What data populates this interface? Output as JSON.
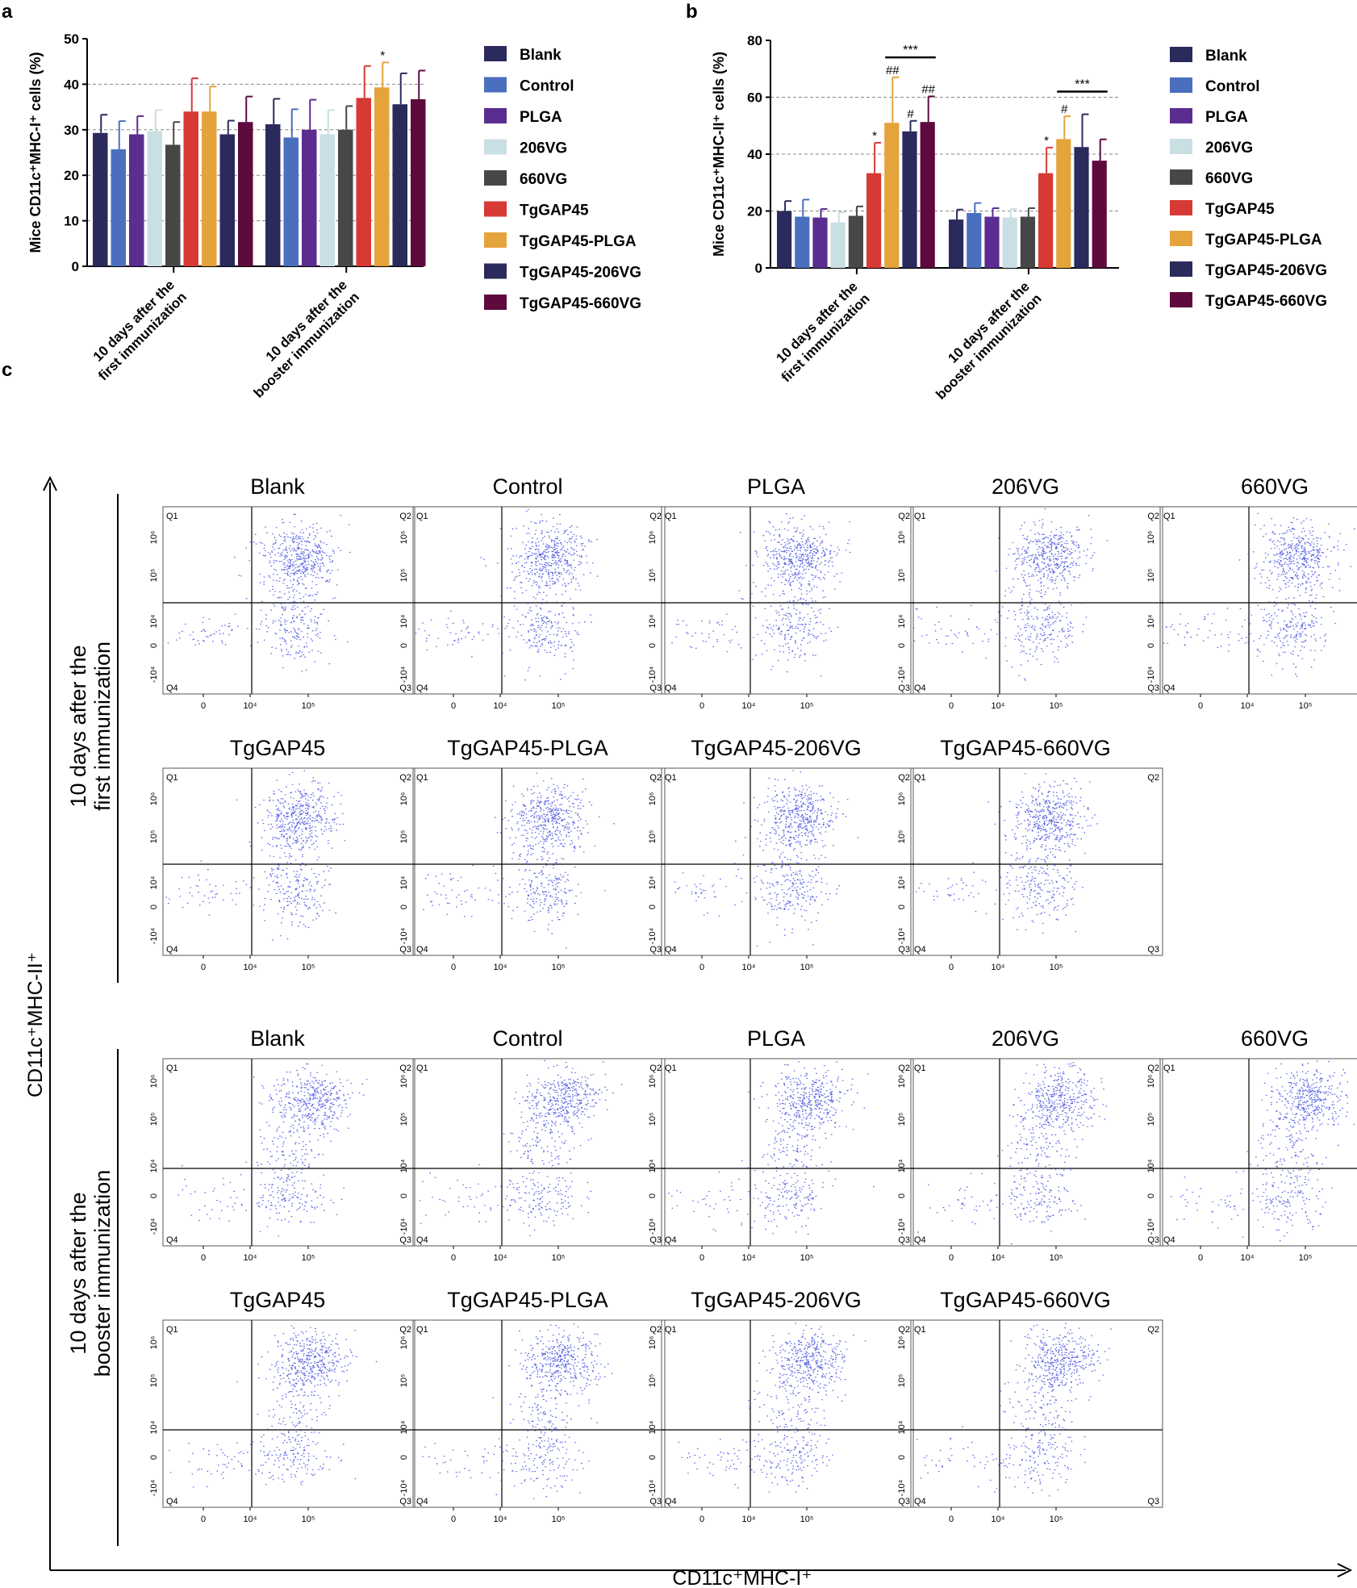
{
  "panel_labels": {
    "a": "a",
    "b": "b",
    "c": "c"
  },
  "chart_data": [
    {
      "type": "bar",
      "panel": "a",
      "ylabel": "Mice CD11c⁺MHC-I⁺ cells (%)",
      "ylim": [
        0,
        50
      ],
      "yticks": [
        "0",
        "10",
        "20",
        "30",
        "40",
        "50"
      ],
      "grid": "dashed at 10, 20, 30, 40",
      "legend_position": "right",
      "categories": [
        {
          "line1": "10 days after the",
          "line2": "first immunization"
        },
        {
          "line1": "10 days after the",
          "line2": "booster immunization"
        }
      ],
      "series": [
        {
          "name": "Blank",
          "color": "#2b2a5c",
          "values": [
            29.3,
            31.2
          ],
          "errors": [
            4.0,
            5.6
          ],
          "marks": [
            "",
            ""
          ]
        },
        {
          "name": "Control",
          "color": "#4a6fbf",
          "values": [
            25.7,
            28.3
          ],
          "errors": [
            6.2,
            6.2
          ],
          "marks": [
            "",
            ""
          ]
        },
        {
          "name": "PLGA",
          "color": "#5b2d91",
          "values": [
            29.0,
            30.0
          ],
          "errors": [
            4.0,
            6.6
          ],
          "marks": [
            "",
            ""
          ]
        },
        {
          "name": "206VG",
          "color": "#c9dfe3",
          "values": [
            29.7,
            29.0
          ],
          "errors": [
            4.6,
            5.3
          ],
          "marks": [
            "",
            ""
          ]
        },
        {
          "name": "660VG",
          "color": "#474747",
          "values": [
            26.7,
            30.0
          ],
          "errors": [
            5.0,
            5.2
          ],
          "marks": [
            "",
            ""
          ]
        },
        {
          "name": "TgGAP45",
          "color": "#d73a35",
          "values": [
            34.0,
            37.0
          ],
          "errors": [
            7.3,
            7.0
          ],
          "marks": [
            "",
            ""
          ]
        },
        {
          "name": "TgGAP45-PLGA",
          "color": "#e5a33c",
          "values": [
            34.0,
            39.3
          ],
          "errors": [
            5.5,
            5.5
          ],
          "marks": [
            "",
            "*"
          ]
        },
        {
          "name": "TgGAP45-206VG",
          "color": "#2b2a5c",
          "values": [
            29.0,
            35.6
          ],
          "errors": [
            3.0,
            6.8
          ],
          "marks": [
            "",
            ""
          ]
        },
        {
          "name": "TgGAP45-660VG",
          "color": "#5e0a3d",
          "values": [
            31.7,
            36.7
          ],
          "errors": [
            5.6,
            6.3
          ],
          "marks": [
            "",
            ""
          ]
        }
      ],
      "brackets": []
    },
    {
      "type": "bar",
      "panel": "b",
      "ylabel": "Mice CD11c⁺MHC-II⁺ cells (%)",
      "ylim": [
        0,
        80
      ],
      "yticks": [
        "0",
        "20",
        "40",
        "60",
        "80"
      ],
      "grid": "dashed at 20, 40, 60",
      "legend_position": "right",
      "categories": [
        {
          "line1": "10 days after the",
          "line2": "first immunization"
        },
        {
          "line1": "10 days after the",
          "line2": "booster immunization"
        }
      ],
      "series": [
        {
          "name": "Blank",
          "color": "#2b2a5c",
          "values": [
            20.0,
            17.0
          ],
          "errors": [
            3.5,
            3.5
          ],
          "marks": [
            "",
            ""
          ]
        },
        {
          "name": "Control",
          "color": "#4a6fbf",
          "values": [
            18.0,
            19.3
          ],
          "errors": [
            6.0,
            3.5
          ],
          "marks": [
            "",
            ""
          ]
        },
        {
          "name": "PLGA",
          "color": "#5b2d91",
          "values": [
            17.7,
            18.0
          ],
          "errors": [
            3.0,
            3.0
          ],
          "marks": [
            "",
            ""
          ]
        },
        {
          "name": "206VG",
          "color": "#c9dfe3",
          "values": [
            16.0,
            17.7
          ],
          "errors": [
            3.5,
            3.0
          ],
          "marks": [
            "",
            ""
          ]
        },
        {
          "name": "660VG",
          "color": "#474747",
          "values": [
            18.3,
            18.0
          ],
          "errors": [
            3.3,
            3.0
          ],
          "marks": [
            "",
            ""
          ]
        },
        {
          "name": "TgGAP45",
          "color": "#d73a35",
          "values": [
            33.3,
            33.3
          ],
          "errors": [
            10.7,
            9.0
          ],
          "marks": [
            "*",
            "*"
          ]
        },
        {
          "name": "TgGAP45-PLGA",
          "color": "#e5a33c",
          "values": [
            51.0,
            45.3
          ],
          "errors": [
            16.0,
            8.0
          ],
          "marks": [
            "##",
            "#"
          ]
        },
        {
          "name": "TgGAP45-206VG",
          "color": "#2b2a5c",
          "values": [
            48.0,
            42.5
          ],
          "errors": [
            3.7,
            11.5
          ],
          "marks": [
            "#",
            ""
          ]
        },
        {
          "name": "TgGAP45-660VG",
          "color": "#5e0a3d",
          "values": [
            51.3,
            37.7
          ],
          "errors": [
            9.0,
            7.5
          ],
          "marks": [
            "##",
            ""
          ]
        }
      ],
      "brackets": [
        {
          "group": 0,
          "from": "TgGAP45-PLGA",
          "to": "TgGAP45-660VG",
          "value": 74,
          "label": "***"
        },
        {
          "group": 1,
          "from": "TgGAP45-PLGA",
          "to": "TgGAP45-660VG",
          "value": 62,
          "label": "***"
        }
      ]
    },
    {
      "type": "scatter",
      "panel": "c",
      "subtype": "flow cytometry quadrant plots",
      "xlabel": "CD11c⁺MHC-I⁺",
      "ylabel": "CD11c⁺MHC-II⁺",
      "row_titles": [
        "10 days after the first immunization",
        "10 days after the booster immunization"
      ],
      "quadrant_labels": [
        "Q1",
        "Q2",
        "Q3",
        "Q4"
      ],
      "x_ticks": [
        "0",
        "10⁴",
        "10⁵"
      ],
      "y_ticks": [
        "10⁶",
        "10⁵",
        "10⁴",
        "0",
        "-10⁴"
      ],
      "plots": [
        {
          "row": 0,
          "title": "Blank"
        },
        {
          "row": 0,
          "title": "Control"
        },
        {
          "row": 0,
          "title": "PLGA"
        },
        {
          "row": 0,
          "title": "206VG"
        },
        {
          "row": 0,
          "title": "660VG"
        },
        {
          "row": 0,
          "title": "TgGAP45"
        },
        {
          "row": 0,
          "title": "TgGAP45-PLGA"
        },
        {
          "row": 0,
          "title": "TgGAP45-206VG"
        },
        {
          "row": 0,
          "title": "TgGAP45-660VG"
        },
        {
          "row": 1,
          "title": "Blank"
        },
        {
          "row": 1,
          "title": "Control"
        },
        {
          "row": 1,
          "title": "PLGA"
        },
        {
          "row": 1,
          "title": "206VG"
        },
        {
          "row": 1,
          "title": "660VG"
        },
        {
          "row": 1,
          "title": "TgGAP45"
        },
        {
          "row": 1,
          "title": "TgGAP45-PLGA"
        },
        {
          "row": 1,
          "title": "TgGAP45-206VG"
        },
        {
          "row": 1,
          "title": "TgGAP45-660VG"
        }
      ]
    }
  ]
}
